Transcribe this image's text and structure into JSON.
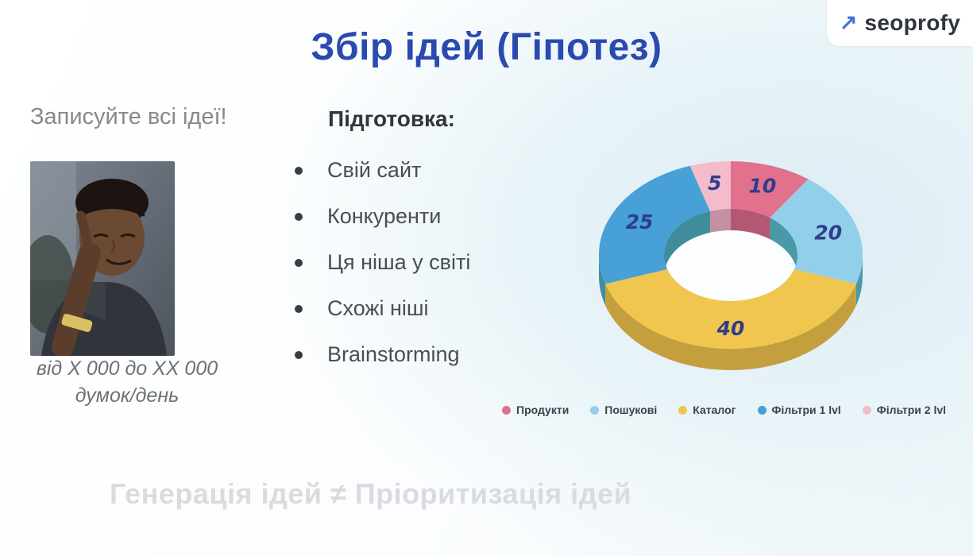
{
  "slide": {
    "title": "Збір ідей (Гіпотез)",
    "logo": {
      "text": "seoprofy",
      "arrow_icon": "arrow-up-right",
      "arrow_glyph": "↗",
      "arrow_color": "#4273d9"
    },
    "left": {
      "heading": "Записуйте всі ідеї!",
      "meme": "roll-safe-thinking-meme",
      "caption_line1": "від X 000 до XX 000",
      "caption_line2": "думок/день"
    },
    "prep": {
      "heading": "Підготовка:",
      "items": [
        "Свій сайт",
        "Конкуренти",
        "Ця ніша у світі",
        "Схожі ніші",
        "Brainstorming"
      ]
    },
    "footer": "Генерація ідей ≠ Пріоритизація ідей"
  },
  "chart_data": {
    "type": "pie",
    "subtype": "3d-donut",
    "start_angle": "top",
    "direction": "clockwise",
    "labels": [
      "Продукти",
      "Пошукові",
      "Каталог",
      "Фільтри 1 lvl",
      "Фільтри 2 lvl"
    ],
    "values": [
      10,
      20,
      40,
      25,
      5
    ],
    "colors": [
      "#e2718e",
      "#92cfea",
      "#f1c64f",
      "#47a0d6",
      "#f4bcca"
    ],
    "dark_colors": [
      "#b25873",
      "#4b98a6",
      "#c49f3e",
      "#3f8d9a",
      "#c490a4"
    ],
    "value_label_color": "#303c8c",
    "legend_position": "bottom"
  }
}
